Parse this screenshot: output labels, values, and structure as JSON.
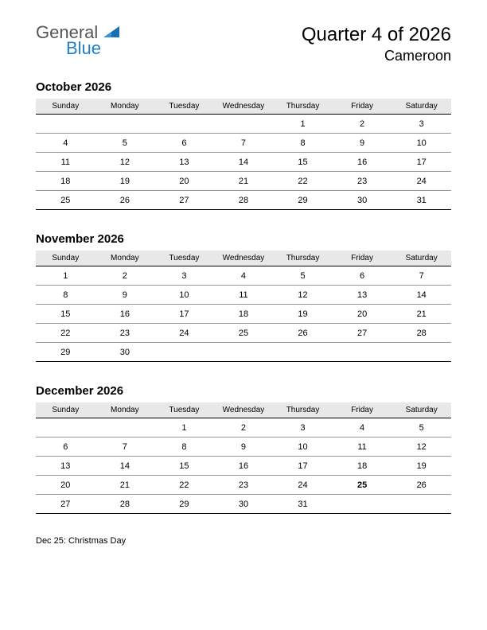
{
  "logo": {
    "text1": "General",
    "text2": "Blue",
    "color_general": "#555555",
    "color_blue": "#2080c8",
    "triangle_color": "#1a6fb0"
  },
  "title": "Quarter 4 of 2026",
  "subtitle": "Cameroon",
  "day_headers": [
    "Sunday",
    "Monday",
    "Tuesday",
    "Wednesday",
    "Thursday",
    "Friday",
    "Saturday"
  ],
  "months": [
    {
      "name": "October 2026",
      "weeks": [
        [
          "",
          "",
          "",
          "",
          "1",
          "2",
          "3"
        ],
        [
          "4",
          "5",
          "6",
          "7",
          "8",
          "9",
          "10"
        ],
        [
          "11",
          "12",
          "13",
          "14",
          "15",
          "16",
          "17"
        ],
        [
          "18",
          "19",
          "20",
          "21",
          "22",
          "23",
          "24"
        ],
        [
          "25",
          "26",
          "27",
          "28",
          "29",
          "30",
          "31"
        ]
      ],
      "holidays": []
    },
    {
      "name": "November 2026",
      "weeks": [
        [
          "1",
          "2",
          "3",
          "4",
          "5",
          "6",
          "7"
        ],
        [
          "8",
          "9",
          "10",
          "11",
          "12",
          "13",
          "14"
        ],
        [
          "15",
          "16",
          "17",
          "18",
          "19",
          "20",
          "21"
        ],
        [
          "22",
          "23",
          "24",
          "25",
          "26",
          "27",
          "28"
        ],
        [
          "29",
          "30",
          "",
          "",
          "",
          "",
          ""
        ]
      ],
      "holidays": []
    },
    {
      "name": "December 2026",
      "weeks": [
        [
          "",
          "",
          "1",
          "2",
          "3",
          "4",
          "5"
        ],
        [
          "6",
          "7",
          "8",
          "9",
          "10",
          "11",
          "12"
        ],
        [
          "13",
          "14",
          "15",
          "16",
          "17",
          "18",
          "19"
        ],
        [
          "20",
          "21",
          "22",
          "23",
          "24",
          "25",
          "26"
        ],
        [
          "27",
          "28",
          "29",
          "30",
          "31",
          "",
          ""
        ]
      ],
      "holidays": [
        {
          "week": 3,
          "col": 5
        }
      ]
    }
  ],
  "notes": "Dec 25: Christmas Day",
  "colors": {
    "background": "#ffffff",
    "text": "#000000",
    "header_bg": "#e8e8e8",
    "row_border": "#999999",
    "bottom_border": "#000000",
    "holiday": "#cc0000"
  },
  "fonts": {
    "title_size": 24,
    "subtitle_size": 18,
    "month_title_size": 15,
    "header_size": 10,
    "cell_size": 11,
    "notes_size": 11
  }
}
